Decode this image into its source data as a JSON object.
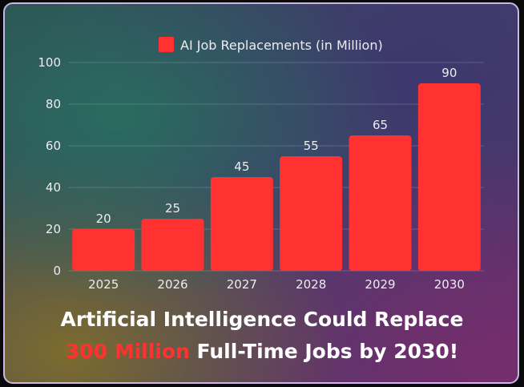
{
  "chart_data": {
    "type": "bar",
    "categories": [
      "2025",
      "2026",
      "2027",
      "2028",
      "2029",
      "2030"
    ],
    "series": [
      {
        "name": "AI Job Replacements (in Million)",
        "values": [
          20,
          25,
          45,
          55,
          65,
          90
        ]
      }
    ],
    "ylim": [
      0,
      100
    ],
    "yticks": [
      "0",
      "20",
      "40",
      "60",
      "80",
      "100"
    ],
    "grid": true,
    "legend_position": "top-center",
    "bar_color": "#ff3131",
    "data_labels": [
      "20",
      "25",
      "45",
      "55",
      "65",
      "90"
    ]
  },
  "headline": {
    "line1": "Artificial Intelligence Could Replace",
    "line2_highlight": "300 Million",
    "line2_rest": " Full-Time Jobs by 2030!"
  },
  "colors": {
    "accent": "#ff3131",
    "border": "#c9b7e6",
    "text": "#ffffff"
  }
}
